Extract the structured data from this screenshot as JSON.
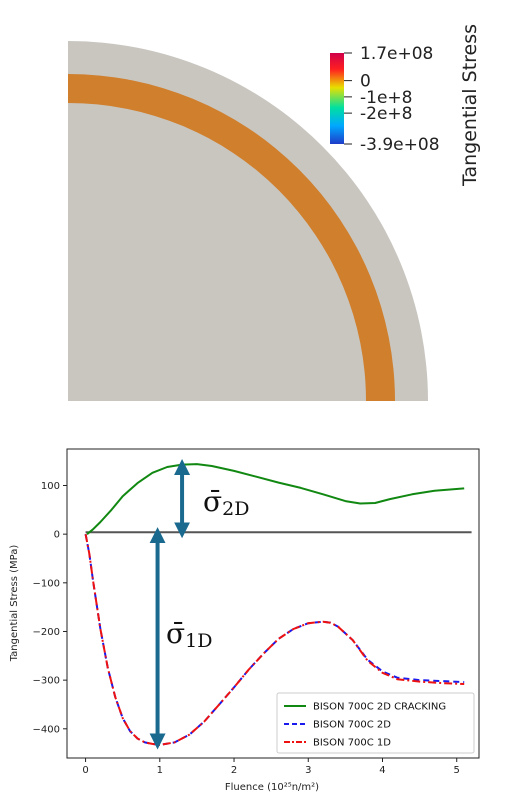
{
  "contour": {
    "colorbar_title": "Tangential Stress",
    "colorbar_ticks": [
      "1.7e+08",
      "0",
      "-1e+8",
      "-2e+8",
      "-3.9e+08"
    ],
    "colorbar_tick_values": [
      170000000,
      0,
      -100000000,
      -200000000,
      -390000000
    ],
    "colorbar_range": [
      -390000000,
      170000000
    ],
    "colors": {
      "background_material": "#c9c6c0",
      "stressed_ring": "#d07f2c",
      "colormap": [
        "#1f3cc8",
        "#00a8ff",
        "#00e0a0",
        "#e8e000",
        "#ff2020",
        "#d0004a"
      ]
    }
  },
  "annotations": {
    "sigma_2d": {
      "symbol": "σ̄",
      "subscript": "2D"
    },
    "sigma_1d": {
      "symbol": "σ̄",
      "subscript": "1D"
    },
    "arrow_color": "#1a6a90"
  },
  "chart_data": {
    "type": "line",
    "title": "",
    "xlabel": "Fluence (10²⁵n/m²)",
    "ylabel": "Tangential Stress (MPa)",
    "xlim": [
      -0.25,
      5.3
    ],
    "ylim": [
      -460,
      175
    ],
    "xticks": [
      0,
      1,
      2,
      3,
      4,
      5
    ],
    "yticks": [
      -400,
      -300,
      -200,
      -100,
      0,
      100
    ],
    "grid": false,
    "legend_position": "bottom-right",
    "reference_line": {
      "y": 4,
      "x_range": [
        0,
        5.2
      ],
      "color": "#555555"
    },
    "series": [
      {
        "name": "BISON 700C 2D CRACKING",
        "color": "#118811",
        "style": "solid",
        "x": [
          0.02,
          0.1,
          0.2,
          0.35,
          0.5,
          0.7,
          0.9,
          1.1,
          1.3,
          1.5,
          1.7,
          2.0,
          2.3,
          2.6,
          2.9,
          3.2,
          3.5,
          3.7,
          3.9,
          4.1,
          4.4,
          4.7,
          5.1
        ],
        "y": [
          0,
          10,
          25,
          50,
          78,
          105,
          126,
          138,
          143,
          144,
          140,
          130,
          118,
          106,
          95,
          82,
          68,
          63,
          64,
          72,
          82,
          89,
          94
        ]
      },
      {
        "name": "BISON 700C 2D",
        "color": "#1a1aee",
        "style": "dashed",
        "x": [
          0,
          0.05,
          0.1,
          0.2,
          0.3,
          0.4,
          0.5,
          0.6,
          0.7,
          0.8,
          0.9,
          1.0,
          1.2,
          1.4,
          1.6,
          1.8,
          2.0,
          2.2,
          2.4,
          2.6,
          2.8,
          3.0,
          3.2,
          3.3,
          3.4,
          3.6,
          3.8,
          4.0,
          4.2,
          4.5,
          4.8,
          5.1
        ],
        "y": [
          0,
          -40,
          -95,
          -195,
          -275,
          -335,
          -378,
          -405,
          -420,
          -428,
          -431,
          -433,
          -428,
          -412,
          -385,
          -350,
          -315,
          -278,
          -245,
          -215,
          -195,
          -183,
          -180,
          -182,
          -190,
          -218,
          -258,
          -282,
          -295,
          -300,
          -302,
          -304
        ]
      },
      {
        "name": "BISON 700C 1D",
        "color": "#ee1111",
        "style": "dashdot",
        "x": [
          0,
          0.05,
          0.1,
          0.2,
          0.3,
          0.4,
          0.5,
          0.6,
          0.7,
          0.8,
          0.9,
          1.0,
          1.2,
          1.4,
          1.6,
          1.8,
          2.0,
          2.2,
          2.4,
          2.6,
          2.8,
          3.0,
          3.2,
          3.3,
          3.4,
          3.6,
          3.8,
          4.0,
          4.2,
          4.5,
          4.8,
          5.1
        ],
        "y": [
          0,
          -40,
          -95,
          -195,
          -275,
          -335,
          -378,
          -405,
          -420,
          -428,
          -431,
          -433,
          -428,
          -412,
          -385,
          -350,
          -315,
          -278,
          -245,
          -215,
          -195,
          -183,
          -180,
          -182,
          -190,
          -218,
          -260,
          -285,
          -298,
          -303,
          -306,
          -308
        ]
      }
    ]
  }
}
